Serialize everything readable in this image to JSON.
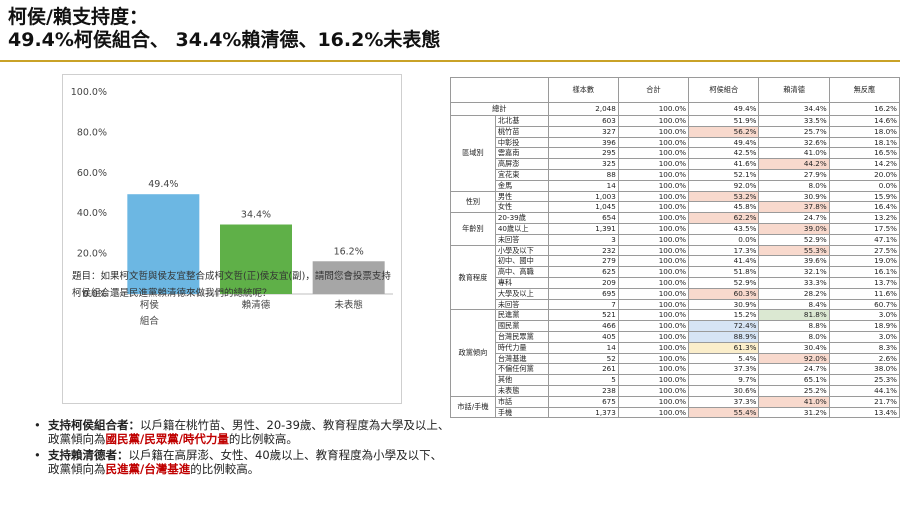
{
  "title": {
    "line1": "柯侯/賴支持度：",
    "line2": "49.4%柯侯組合、 34.4%賴清德、16.2%未表態"
  },
  "colors": {
    "accent_rule": "#c9a227",
    "bar1": "#6cb7e3",
    "bar2": "#5fb048",
    "bar3": "#a6a6a6",
    "highlight_red": "#c00000"
  },
  "chart_data": {
    "type": "bar",
    "categories": [
      "柯侯\n組合",
      "賴清德",
      "未表態"
    ],
    "category_lines": [
      [
        "柯侯",
        "組合"
      ],
      [
        "賴清德"
      ],
      [
        "未表態"
      ]
    ],
    "values": [
      49.4,
      34.4,
      16.2
    ],
    "value_labels": [
      "49.4%",
      "34.4%",
      "16.2%"
    ],
    "yticks": [
      0,
      20,
      40,
      60,
      80,
      100
    ],
    "ytick_labels": [
      "0.0%",
      "20.0%",
      "40.0%",
      "60.0%",
      "80.0%",
      "100.0%"
    ],
    "ylim": [
      0,
      100
    ],
    "title": "",
    "xlabel": "",
    "ylabel": "",
    "grid": false
  },
  "question": "題目：如果柯文哲與侯友宜整合成柯文哲(正)侯友宜(副)，請問您會投票支持柯侯組合還是民進黨賴清德來做我們的總統呢？",
  "bullets": [
    {
      "dot": "•",
      "lead": "支持柯侯組合者：",
      "text1": "以戶籍在桃竹苗、男性、20-39歲、教育程度為大學及以上、 政黨傾向為",
      "highlight": "國民黨/民眾黨/時代力量",
      "text2": "的比例較高。"
    },
    {
      "dot": "•",
      "lead": "支持賴清德者：",
      "text1": "以戶籍在高屏澎、女性、40歲以上、教育程度為小學及以下、政黨傾向為",
      "highlight": "民進黨/台灣基進",
      "text2": "的比例較高。"
    }
  ],
  "table": {
    "headers": [
      "樣本數",
      "合計",
      "柯侯組合",
      "賴清德",
      "無反應"
    ],
    "total": {
      "label": "總計",
      "cells": [
        "2,048",
        "100.0%",
        "49.4%",
        "34.4%",
        "16.2%"
      ]
    },
    "groups": [
      {
        "name": "區域別",
        "rows": [
          {
            "sub": "北北基",
            "cells": [
              "603",
              "100.0%",
              "51.9%",
              "33.5%",
              "14.6%"
            ],
            "hl": [
              null,
              null,
              null,
              null,
              null
            ]
          },
          {
            "sub": "桃竹苗",
            "cells": [
              "327",
              "100.0%",
              "56.2%",
              "25.7%",
              "18.0%"
            ],
            "hl": [
              null,
              null,
              "red",
              null,
              null
            ]
          },
          {
            "sub": "中彰投",
            "cells": [
              "396",
              "100.0%",
              "49.4%",
              "32.6%",
              "18.1%"
            ],
            "hl": [
              null,
              null,
              null,
              null,
              null
            ]
          },
          {
            "sub": "雲嘉南",
            "cells": [
              "295",
              "100.0%",
              "42.5%",
              "41.0%",
              "16.5%"
            ],
            "hl": [
              null,
              null,
              null,
              null,
              null
            ]
          },
          {
            "sub": "高屏澎",
            "cells": [
              "325",
              "100.0%",
              "41.6%",
              "44.2%",
              "14.2%"
            ],
            "hl": [
              null,
              null,
              null,
              "red",
              null
            ]
          },
          {
            "sub": "宜花東",
            "cells": [
              "88",
              "100.0%",
              "52.1%",
              "27.9%",
              "20.0%"
            ],
            "hl": [
              null,
              null,
              null,
              null,
              null
            ]
          },
          {
            "sub": "金馬",
            "cells": [
              "14",
              "100.0%",
              "92.0%",
              "8.0%",
              "0.0%"
            ],
            "hl": [
              null,
              null,
              null,
              null,
              null
            ]
          }
        ]
      },
      {
        "name": "性別",
        "rows": [
          {
            "sub": "男性",
            "cells": [
              "1,003",
              "100.0%",
              "53.2%",
              "30.9%",
              "15.9%"
            ],
            "hl": [
              null,
              null,
              "red",
              null,
              null
            ]
          },
          {
            "sub": "女性",
            "cells": [
              "1,045",
              "100.0%",
              "45.8%",
              "37.8%",
              "16.4%"
            ],
            "hl": [
              null,
              null,
              null,
              "red",
              null
            ]
          }
        ]
      },
      {
        "name": "年齡別",
        "rows": [
          {
            "sub": "20-39歲",
            "cells": [
              "654",
              "100.0%",
              "62.2%",
              "24.7%",
              "13.2%"
            ],
            "hl": [
              null,
              null,
              "red",
              null,
              null
            ]
          },
          {
            "sub": "40歲以上",
            "cells": [
              "1,391",
              "100.0%",
              "43.5%",
              "39.0%",
              "17.5%"
            ],
            "hl": [
              null,
              null,
              null,
              "red",
              null
            ]
          },
          {
            "sub": "未回答",
            "cells": [
              "3",
              "100.0%",
              "0.0%",
              "52.9%",
              "47.1%"
            ],
            "hl": [
              null,
              null,
              null,
              null,
              null
            ]
          }
        ]
      },
      {
        "name": "教育程度",
        "rows": [
          {
            "sub": "小學及以下",
            "cells": [
              "232",
              "100.0%",
              "17.3%",
              "55.3%",
              "27.5%"
            ],
            "hl": [
              null,
              null,
              null,
              "red",
              null
            ]
          },
          {
            "sub": "初中、國中",
            "cells": [
              "279",
              "100.0%",
              "41.4%",
              "39.6%",
              "19.0%"
            ],
            "hl": [
              null,
              null,
              null,
              null,
              null
            ]
          },
          {
            "sub": "高中、高職",
            "cells": [
              "625",
              "100.0%",
              "51.8%",
              "32.1%",
              "16.1%"
            ],
            "hl": [
              null,
              null,
              null,
              null,
              null
            ]
          },
          {
            "sub": "專科",
            "cells": [
              "209",
              "100.0%",
              "52.9%",
              "33.3%",
              "13.7%"
            ],
            "hl": [
              null,
              null,
              null,
              null,
              null
            ]
          },
          {
            "sub": "大學及以上",
            "cells": [
              "695",
              "100.0%",
              "60.3%",
              "28.2%",
              "11.6%"
            ],
            "hl": [
              null,
              null,
              "red",
              null,
              null
            ]
          },
          {
            "sub": "未回答",
            "cells": [
              "7",
              "100.0%",
              "30.9%",
              "8.4%",
              "60.7%"
            ],
            "hl": [
              null,
              null,
              null,
              null,
              null
            ]
          }
        ]
      },
      {
        "name": "政黨傾向",
        "rows": [
          {
            "sub": "民進黨",
            "cells": [
              "521",
              "100.0%",
              "15.2%",
              "81.8%",
              "3.0%"
            ],
            "hl": [
              null,
              null,
              null,
              "green",
              null
            ]
          },
          {
            "sub": "國民黨",
            "cells": [
              "466",
              "100.0%",
              "72.4%",
              "8.8%",
              "18.9%"
            ],
            "hl": [
              null,
              null,
              "blue",
              null,
              null
            ]
          },
          {
            "sub": "台灣民眾黨",
            "cells": [
              "405",
              "100.0%",
              "88.9%",
              "8.0%",
              "3.0%"
            ],
            "hl": [
              null,
              null,
              "blue",
              null,
              null
            ]
          },
          {
            "sub": "時代力量",
            "cells": [
              "14",
              "100.0%",
              "61.3%",
              "30.4%",
              "8.3%"
            ],
            "hl": [
              null,
              null,
              "yellow",
              null,
              null
            ]
          },
          {
            "sub": "台灣基進",
            "cells": [
              "52",
              "100.0%",
              "5.4%",
              "92.0%",
              "2.6%"
            ],
            "hl": [
              null,
              null,
              null,
              "red",
              null
            ]
          },
          {
            "sub": "不偏任何黨",
            "cells": [
              "261",
              "100.0%",
              "37.3%",
              "24.7%",
              "38.0%"
            ],
            "hl": [
              null,
              null,
              null,
              null,
              null
            ]
          },
          {
            "sub": "其他",
            "cells": [
              "5",
              "100.0%",
              "9.7%",
              "65.1%",
              "25.3%"
            ],
            "hl": [
              null,
              null,
              null,
              null,
              null
            ]
          },
          {
            "sub": "未表態",
            "cells": [
              "238",
              "100.0%",
              "30.6%",
              "25.2%",
              "44.1%"
            ],
            "hl": [
              null,
              null,
              null,
              null,
              null
            ]
          }
        ]
      },
      {
        "name": "市話/手機",
        "rows": [
          {
            "sub": "市話",
            "cells": [
              "675",
              "100.0%",
              "37.3%",
              "41.0%",
              "21.7%"
            ],
            "hl": [
              null,
              null,
              null,
              "red",
              null
            ]
          },
          {
            "sub": "手機",
            "cells": [
              "1,373",
              "100.0%",
              "55.4%",
              "31.2%",
              "13.4%"
            ],
            "hl": [
              null,
              null,
              "red",
              null,
              null
            ]
          }
        ]
      }
    ]
  }
}
